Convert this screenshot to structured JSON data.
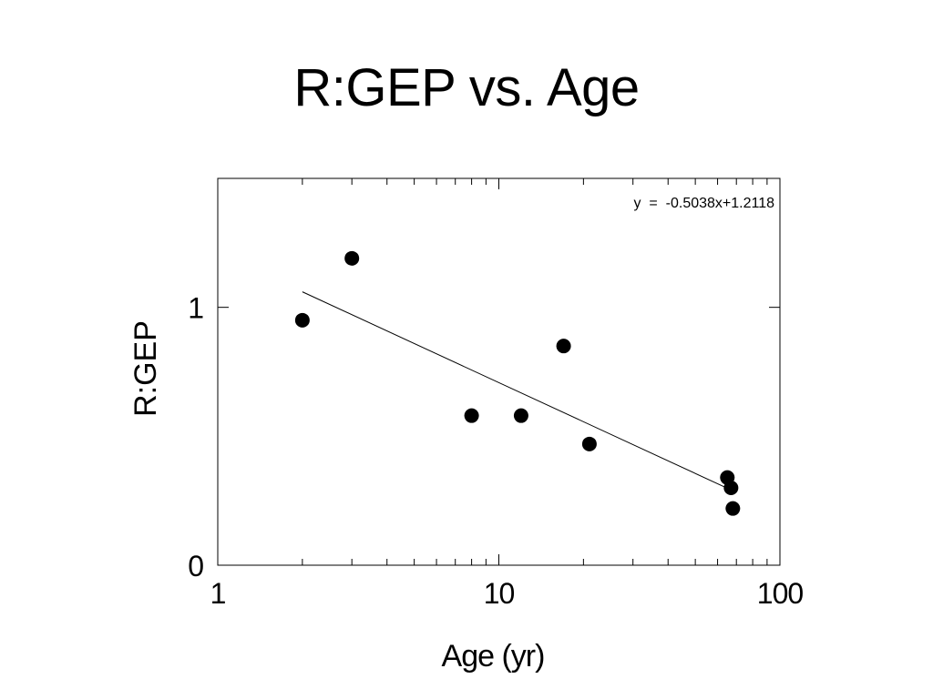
{
  "chart_data": {
    "type": "scatter",
    "title": "R:GEP vs. Age",
    "xlabel": "Age (yr)",
    "ylabel": "R:GEP",
    "x_scale": "log",
    "xlim": [
      1,
      100
    ],
    "ylim": [
      0,
      1.5
    ],
    "x_ticks": [
      1,
      10,
      100
    ],
    "x_tick_labels": [
      "1",
      "10",
      "100"
    ],
    "y_ticks": [
      0,
      1
    ],
    "y_tick_labels": [
      "0",
      "1"
    ],
    "grid": false,
    "series": [
      {
        "points": [
          {
            "x": 2,
            "y": 0.95
          },
          {
            "x": 3,
            "y": 1.19
          },
          {
            "x": 8,
            "y": 0.58
          },
          {
            "x": 12,
            "y": 0.58
          },
          {
            "x": 17,
            "y": 0.85
          },
          {
            "x": 21,
            "y": 0.47
          },
          {
            "x": 65,
            "y": 0.34
          },
          {
            "x": 67,
            "y": 0.3
          },
          {
            "x": 68,
            "y": 0.22
          }
        ]
      }
    ],
    "trendline": {
      "type": "linear-in-log10-x",
      "slope": -0.5038,
      "intercept": 1.2118,
      "x_range": [
        2,
        65
      ],
      "equation_label": "y  =  -0.5038x+1.2118"
    }
  }
}
